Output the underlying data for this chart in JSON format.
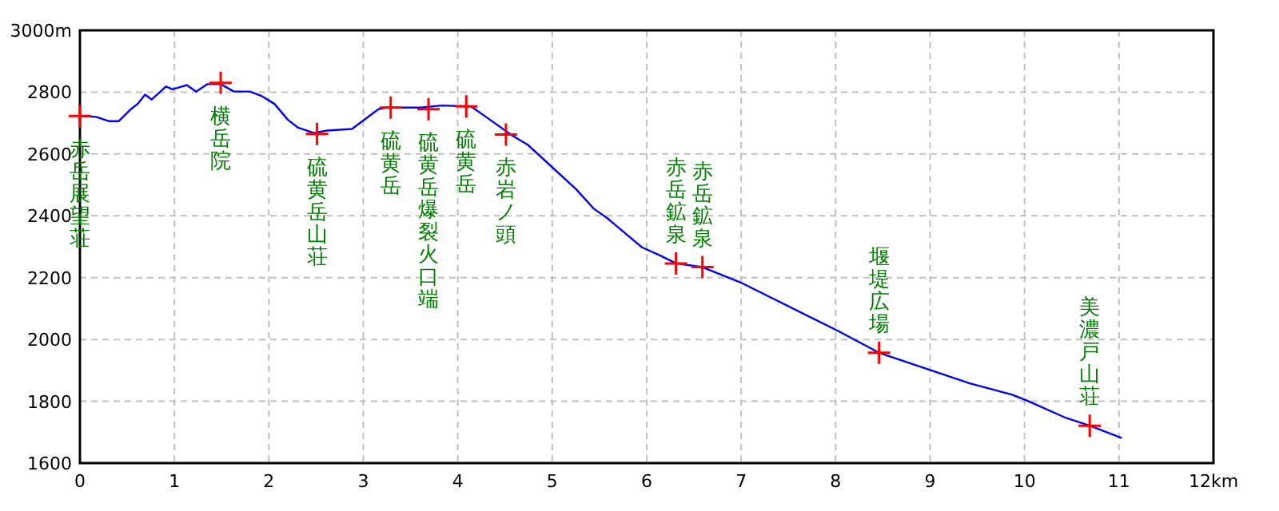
{
  "chart_data": {
    "type": "line",
    "xlim": [
      0,
      12
    ],
    "xticks": [
      0,
      1,
      2,
      3,
      4,
      5,
      6,
      7,
      8,
      9,
      10,
      11,
      {
        "value": 12,
        "label": "12km"
      }
    ],
    "ylim": [
      1600,
      3000
    ],
    "yticks": [
      1600,
      1800,
      2000,
      2200,
      2400,
      2600,
      2800,
      {
        "value": 3000,
        "label": "3000m"
      }
    ],
    "grid": true,
    "series": [
      {
        "type": "line",
        "color": "#0000ff",
        "x": [
          0,
          0.17,
          0.31,
          0.41,
          0.54,
          0.61,
          0.69,
          0.76,
          0.91,
          0.98,
          1.13,
          1.23,
          1.35,
          1.49,
          1.63,
          1.8,
          1.92,
          2.06,
          2.2,
          2.31,
          2.48,
          2.62,
          2.88,
          3.16,
          3.24,
          3.61,
          3.83,
          4.14,
          4.34,
          4.58,
          4.74,
          5.25,
          5.44,
          5.58,
          5.95,
          6.14,
          6.31,
          6.59,
          6.99,
          8.01,
          8.46,
          9.0,
          9.42,
          9.87,
          10.02,
          10.44,
          10.69,
          11.03
        ],
        "values": [
          2723,
          2720,
          2706,
          2706,
          2745,
          2762,
          2792,
          2776,
          2818,
          2809,
          2823,
          2802,
          2826,
          2826,
          2802,
          2802,
          2788,
          2762,
          2711,
          2685,
          2668,
          2676,
          2681,
          2745,
          2750,
          2750,
          2757,
          2754,
          2711,
          2659,
          2630,
          2487,
          2423,
          2393,
          2298,
          2272,
          2246,
          2234,
          2185,
          2030,
          1957,
          1901,
          1858,
          1821,
          1803,
          1746,
          1721,
          1681
        ]
      },
      {
        "type": "scatter",
        "color": "#ff0000",
        "marker": "cross",
        "x": [
          0,
          1.49,
          2.51,
          3.29,
          3.69,
          4.09,
          4.51,
          6.31,
          6.59,
          8.46,
          10.69
        ],
        "values": [
          2723,
          2830,
          2665,
          2750,
          2745,
          2754,
          2663,
          2246,
          2234,
          1957,
          1721
        ]
      }
    ],
    "annotations": [
      {
        "text": "赤岳展望荘",
        "x": 0,
        "y": 2723
      },
      {
        "text": "横岳院",
        "x": 1.49,
        "y": 2830
      },
      {
        "text": "硫黄岳山荘",
        "x": 2.51,
        "y": 2665
      },
      {
        "text": "硫黄岳",
        "x": 3.29,
        "y": 2750
      },
      {
        "text": "硫黄岳爆裂火口端",
        "x": 3.69,
        "y": 2745
      },
      {
        "text": "硫黄岳",
        "x": 4.09,
        "y": 2754
      },
      {
        "text": "赤岩ノ頭",
        "x": 4.51,
        "y": 2663
      },
      {
        "text": "赤岳鉱泉",
        "x": 6.31,
        "y": 2246
      },
      {
        "text": "赤岳鉱泉",
        "x": 6.59,
        "y": 2234
      },
      {
        "text": "堰堤広場",
        "x": 8.46,
        "y": 1957
      },
      {
        "text": "美濃戸山荘",
        "x": 10.69,
        "y": 1721
      }
    ]
  }
}
